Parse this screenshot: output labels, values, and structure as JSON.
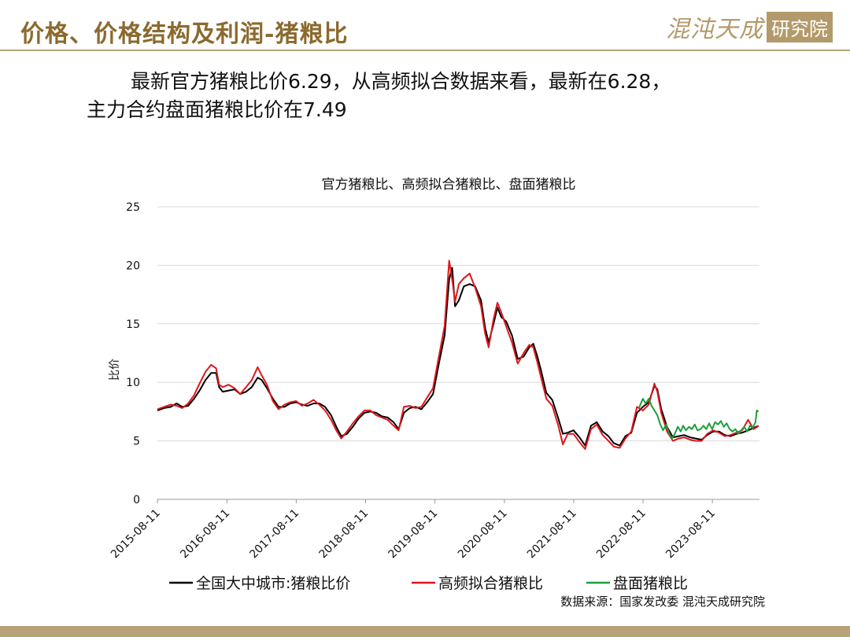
{
  "header": {
    "title": "价格、价格结构及利润-猪粮比",
    "logo_text": "混沌天成",
    "logo_box": "研究院"
  },
  "summary": {
    "line1": "最新官方猪粮比价6.29，从高频拟合数据来看，最新在6.28，",
    "line2": "主力合约盘面猪粮比价在7.49"
  },
  "colors": {
    "accent": "#8B6A2E",
    "series_official": "#000000",
    "series_hf": "#E0161B",
    "series_futures": "#1E9E3E"
  },
  "chart_data": {
    "type": "line",
    "title": "官方猪粮比、高频拟合猪粮比、盘面猪粮比",
    "ylabel": "比价",
    "xlabel": "",
    "ylim": [
      0,
      25
    ],
    "yticks": [
      "0",
      "5",
      "10",
      "15",
      "20",
      "25"
    ],
    "xticks": [
      "2015-08-11",
      "2016-08-11",
      "2017-08-11",
      "2018-08-11",
      "2019-08-11",
      "2020-08-11",
      "2021-08-11",
      "2022-08-11",
      "2023-08-11"
    ],
    "grid": true,
    "legend_position": "bottom",
    "source": "数据来源：国家发改委 混沌天成研究院",
    "series": [
      {
        "name": "全国大中城市:猪粮比价",
        "color": "#000000",
        "points": [
          [
            "2015-08-11",
            7.6
          ],
          [
            "2015-09-15",
            7.8
          ],
          [
            "2015-10-20",
            7.9
          ],
          [
            "2015-11-20",
            8.2
          ],
          [
            "2015-12-20",
            7.9
          ],
          [
            "2016-01-20",
            8.0
          ],
          [
            "2016-02-20",
            8.6
          ],
          [
            "2016-03-20",
            9.3
          ],
          [
            "2016-04-20",
            10.2
          ],
          [
            "2016-05-20",
            10.8
          ],
          [
            "2016-06-15",
            10.8
          ],
          [
            "2016-07-01",
            9.6
          ],
          [
            "2016-07-20",
            9.2
          ],
          [
            "2016-08-20",
            9.3
          ],
          [
            "2016-09-20",
            9.4
          ],
          [
            "2016-10-20",
            9.0
          ],
          [
            "2016-11-20",
            9.2
          ],
          [
            "2016-12-20",
            9.6
          ],
          [
            "2017-01-20",
            10.4
          ],
          [
            "2017-02-10",
            10.2
          ],
          [
            "2017-03-10",
            9.5
          ],
          [
            "2017-04-10",
            8.6
          ],
          [
            "2017-05-10",
            7.9
          ],
          [
            "2017-06-10",
            7.9
          ],
          [
            "2017-07-10",
            8.2
          ],
          [
            "2017-08-10",
            8.3
          ],
          [
            "2017-09-10",
            8.1
          ],
          [
            "2017-10-10",
            8.0
          ],
          [
            "2017-11-10",
            8.2
          ],
          [
            "2017-12-10",
            8.2
          ],
          [
            "2018-01-10",
            7.9
          ],
          [
            "2018-02-10",
            7.2
          ],
          [
            "2018-03-10",
            6.2
          ],
          [
            "2018-04-05",
            5.4
          ],
          [
            "2018-05-05",
            5.6
          ],
          [
            "2018-06-05",
            6.2
          ],
          [
            "2018-07-05",
            6.9
          ],
          [
            "2018-08-05",
            7.4
          ],
          [
            "2018-09-05",
            7.5
          ],
          [
            "2018-10-05",
            7.4
          ],
          [
            "2018-11-05",
            7.1
          ],
          [
            "2018-12-05",
            7.0
          ],
          [
            "2019-01-05",
            6.6
          ],
          [
            "2019-02-01",
            6.0
          ],
          [
            "2019-03-01",
            7.4
          ],
          [
            "2019-04-01",
            7.8
          ],
          [
            "2019-05-01",
            7.9
          ],
          [
            "2019-06-01",
            7.7
          ],
          [
            "2019-07-01",
            8.3
          ],
          [
            "2019-08-01",
            9.0
          ],
          [
            "2019-09-01",
            11.6
          ],
          [
            "2019-10-01",
            14.0
          ],
          [
            "2019-10-25",
            18.8
          ],
          [
            "2019-11-10",
            19.8
          ],
          [
            "2019-11-25",
            16.5
          ],
          [
            "2019-12-15",
            17.0
          ],
          [
            "2020-01-10",
            18.2
          ],
          [
            "2020-02-10",
            18.4
          ],
          [
            "2020-03-10",
            18.2
          ],
          [
            "2020-04-10",
            17.0
          ],
          [
            "2020-05-01",
            14.7
          ],
          [
            "2020-05-20",
            13.4
          ],
          [
            "2020-06-15",
            15.0
          ],
          [
            "2020-07-05",
            16.4
          ],
          [
            "2020-07-25",
            15.6
          ],
          [
            "2020-08-20",
            15.2
          ],
          [
            "2020-09-20",
            14.0
          ],
          [
            "2020-10-20",
            12.0
          ],
          [
            "2020-11-20",
            12.2
          ],
          [
            "2020-12-20",
            13.0
          ],
          [
            "2021-01-10",
            13.3
          ],
          [
            "2021-01-30",
            12.3
          ],
          [
            "2021-02-20",
            11.0
          ],
          [
            "2021-03-20",
            9.1
          ],
          [
            "2021-04-20",
            8.5
          ],
          [
            "2021-05-20",
            7.0
          ],
          [
            "2021-06-15",
            5.6
          ],
          [
            "2021-07-10",
            5.7
          ],
          [
            "2021-08-10",
            5.9
          ],
          [
            "2021-09-10",
            5.3
          ],
          [
            "2021-10-10",
            4.6
          ],
          [
            "2021-11-10",
            6.3
          ],
          [
            "2021-12-10",
            6.6
          ],
          [
            "2022-01-10",
            5.8
          ],
          [
            "2022-02-10",
            5.4
          ],
          [
            "2022-03-10",
            4.8
          ],
          [
            "2022-04-10",
            4.6
          ],
          [
            "2022-05-10",
            5.4
          ],
          [
            "2022-06-10",
            5.7
          ],
          [
            "2022-07-10",
            7.4
          ],
          [
            "2022-08-10",
            7.9
          ],
          [
            "2022-09-10",
            8.3
          ],
          [
            "2022-10-10",
            9.7
          ],
          [
            "2022-10-25",
            9.4
          ],
          [
            "2022-11-15",
            7.7
          ],
          [
            "2022-12-15",
            6.2
          ],
          [
            "2023-01-15",
            5.3
          ],
          [
            "2023-02-15",
            5.4
          ],
          [
            "2023-03-15",
            5.5
          ],
          [
            "2023-04-15",
            5.3
          ],
          [
            "2023-05-15",
            5.2
          ],
          [
            "2023-06-15",
            5.1
          ],
          [
            "2023-07-15",
            5.5
          ],
          [
            "2023-08-15",
            5.8
          ],
          [
            "2023-09-15",
            5.8
          ],
          [
            "2023-10-15",
            5.5
          ],
          [
            "2023-11-15",
            5.4
          ],
          [
            "2023-12-15",
            5.6
          ],
          [
            "2024-01-15",
            5.7
          ],
          [
            "2024-02-15",
            5.9
          ],
          [
            "2024-03-15",
            6.1
          ],
          [
            "2024-04-10",
            6.29
          ]
        ]
      },
      {
        "name": "高频拟合猪粮比",
        "color": "#E0161B",
        "points": [
          [
            "2015-08-11",
            7.7
          ],
          [
            "2015-09-15",
            7.9
          ],
          [
            "2015-10-20",
            8.1
          ],
          [
            "2015-11-20",
            8.0
          ],
          [
            "2015-12-20",
            7.8
          ],
          [
            "2016-01-20",
            8.2
          ],
          [
            "2016-02-20",
            8.9
          ],
          [
            "2016-03-20",
            9.9
          ],
          [
            "2016-04-20",
            10.9
          ],
          [
            "2016-05-20",
            11.5
          ],
          [
            "2016-06-15",
            11.2
          ],
          [
            "2016-07-01",
            9.8
          ],
          [
            "2016-07-20",
            9.6
          ],
          [
            "2016-08-20",
            9.8
          ],
          [
            "2016-09-20",
            9.5
          ],
          [
            "2016-10-20",
            9.0
          ],
          [
            "2016-11-20",
            9.6
          ],
          [
            "2016-12-20",
            10.2
          ],
          [
            "2017-01-20",
            11.3
          ],
          [
            "2017-02-10",
            10.6
          ],
          [
            "2017-03-10",
            9.8
          ],
          [
            "2017-04-10",
            8.4
          ],
          [
            "2017-05-10",
            7.7
          ],
          [
            "2017-06-10",
            8.1
          ],
          [
            "2017-07-10",
            8.3
          ],
          [
            "2017-08-10",
            8.4
          ],
          [
            "2017-09-10",
            8.0
          ],
          [
            "2017-10-10",
            8.2
          ],
          [
            "2017-11-10",
            8.5
          ],
          [
            "2017-12-10",
            8.1
          ],
          [
            "2018-01-10",
            7.6
          ],
          [
            "2018-02-10",
            6.8
          ],
          [
            "2018-03-10",
            5.9
          ],
          [
            "2018-04-05",
            5.2
          ],
          [
            "2018-05-05",
            5.8
          ],
          [
            "2018-06-05",
            6.5
          ],
          [
            "2018-07-05",
            7.1
          ],
          [
            "2018-08-05",
            7.6
          ],
          [
            "2018-09-05",
            7.6
          ],
          [
            "2018-10-05",
            7.2
          ],
          [
            "2018-11-05",
            7.0
          ],
          [
            "2018-12-05",
            6.8
          ],
          [
            "2019-01-05",
            6.3
          ],
          [
            "2019-02-01",
            5.9
          ],
          [
            "2019-03-01",
            7.9
          ],
          [
            "2019-04-01",
            8.0
          ],
          [
            "2019-05-01",
            7.8
          ],
          [
            "2019-06-01",
            7.9
          ],
          [
            "2019-07-01",
            8.7
          ],
          [
            "2019-08-01",
            9.5
          ],
          [
            "2019-09-01",
            12.2
          ],
          [
            "2019-10-01",
            14.8
          ],
          [
            "2019-10-25",
            20.4
          ],
          [
            "2019-11-10",
            18.8
          ],
          [
            "2019-11-25",
            16.9
          ],
          [
            "2019-12-15",
            18.4
          ],
          [
            "2020-01-10",
            18.9
          ],
          [
            "2020-02-10",
            19.3
          ],
          [
            "2020-03-10",
            18.1
          ],
          [
            "2020-04-10",
            16.5
          ],
          [
            "2020-05-01",
            14.2
          ],
          [
            "2020-05-20",
            13.0
          ],
          [
            "2020-06-15",
            15.4
          ],
          [
            "2020-07-05",
            16.8
          ],
          [
            "2020-07-25",
            16.0
          ],
          [
            "2020-08-20",
            14.8
          ],
          [
            "2020-09-20",
            13.4
          ],
          [
            "2020-10-20",
            11.6
          ],
          [
            "2020-11-20",
            12.5
          ],
          [
            "2020-12-20",
            13.2
          ],
          [
            "2021-01-10",
            13.0
          ],
          [
            "2021-01-30",
            11.8
          ],
          [
            "2021-02-20",
            10.4
          ],
          [
            "2021-03-20",
            8.6
          ],
          [
            "2021-04-20",
            8.0
          ],
          [
            "2021-05-20",
            6.4
          ],
          [
            "2021-06-15",
            4.7
          ],
          [
            "2021-07-10",
            5.6
          ],
          [
            "2021-08-10",
            5.6
          ],
          [
            "2021-09-10",
            4.9
          ],
          [
            "2021-10-10",
            4.3
          ],
          [
            "2021-11-10",
            6.0
          ],
          [
            "2021-12-10",
            6.4
          ],
          [
            "2022-01-10",
            5.5
          ],
          [
            "2022-02-10",
            5.0
          ],
          [
            "2022-03-10",
            4.5
          ],
          [
            "2022-04-10",
            4.4
          ],
          [
            "2022-05-10",
            5.2
          ],
          [
            "2022-06-10",
            5.8
          ],
          [
            "2022-07-10",
            7.9
          ],
          [
            "2022-08-10",
            7.6
          ],
          [
            "2022-09-10",
            8.1
          ],
          [
            "2022-10-10",
            9.9
          ],
          [
            "2022-10-25",
            9.2
          ],
          [
            "2022-11-15",
            7.4
          ],
          [
            "2022-12-15",
            5.8
          ],
          [
            "2023-01-15",
            5.0
          ],
          [
            "2023-02-15",
            5.2
          ],
          [
            "2023-03-15",
            5.3
          ],
          [
            "2023-04-15",
            5.1
          ],
          [
            "2023-05-15",
            5.0
          ],
          [
            "2023-06-15",
            5.0
          ],
          [
            "2023-07-15",
            5.6
          ],
          [
            "2023-08-15",
            5.9
          ],
          [
            "2023-09-15",
            5.7
          ],
          [
            "2023-10-15",
            5.4
          ],
          [
            "2023-11-15",
            5.5
          ],
          [
            "2023-12-15",
            5.7
          ],
          [
            "2024-01-15",
            5.9
          ],
          [
            "2024-02-15",
            6.8
          ],
          [
            "2024-03-15",
            6.0
          ],
          [
            "2024-04-10",
            6.28
          ]
        ]
      },
      {
        "name": "盘面猪粮比",
        "color": "#1E9E3E",
        "points": [
          [
            "2022-07-20",
            7.8
          ],
          [
            "2022-08-10",
            8.6
          ],
          [
            "2022-08-25",
            8.2
          ],
          [
            "2022-09-10",
            8.6
          ],
          [
            "2022-09-25",
            8.0
          ],
          [
            "2022-10-10",
            7.6
          ],
          [
            "2022-10-25",
            7.2
          ],
          [
            "2022-11-10",
            6.4
          ],
          [
            "2022-11-25",
            5.9
          ],
          [
            "2022-12-10",
            6.4
          ],
          [
            "2022-12-25",
            5.7
          ],
          [
            "2023-01-10",
            5.2
          ],
          [
            "2023-01-25",
            5.6
          ],
          [
            "2023-02-10",
            6.2
          ],
          [
            "2023-02-25",
            5.8
          ],
          [
            "2023-03-10",
            6.3
          ],
          [
            "2023-03-25",
            5.9
          ],
          [
            "2023-04-10",
            6.2
          ],
          [
            "2023-04-25",
            6.0
          ],
          [
            "2023-05-10",
            6.4
          ],
          [
            "2023-05-25",
            5.9
          ],
          [
            "2023-06-10",
            6.0
          ],
          [
            "2023-06-25",
            6.3
          ],
          [
            "2023-07-10",
            6.0
          ],
          [
            "2023-07-25",
            6.5
          ],
          [
            "2023-08-10",
            6.0
          ],
          [
            "2023-08-25",
            6.6
          ],
          [
            "2023-09-10",
            6.4
          ],
          [
            "2023-09-25",
            6.7
          ],
          [
            "2023-10-10",
            6.2
          ],
          [
            "2023-10-25",
            6.5
          ],
          [
            "2023-11-10",
            6.0
          ],
          [
            "2023-11-25",
            5.8
          ],
          [
            "2023-12-10",
            6.0
          ],
          [
            "2023-12-25",
            5.6
          ],
          [
            "2024-01-10",
            5.9
          ],
          [
            "2024-01-25",
            6.2
          ],
          [
            "2024-02-10",
            5.8
          ],
          [
            "2024-02-25",
            6.3
          ],
          [
            "2024-03-10",
            6.1
          ],
          [
            "2024-03-25",
            6.6
          ],
          [
            "2024-04-01",
            7.6
          ],
          [
            "2024-04-10",
            7.49
          ]
        ]
      }
    ]
  }
}
